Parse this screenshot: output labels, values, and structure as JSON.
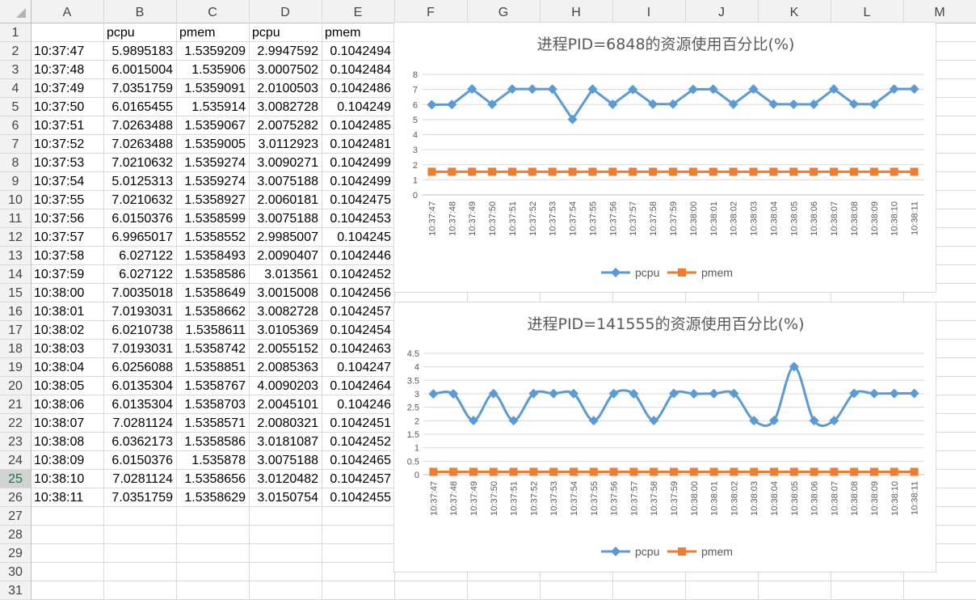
{
  "sheet": {
    "columns": [
      "A",
      "B",
      "C",
      "D",
      "E",
      "F",
      "G",
      "H",
      "I",
      "J",
      "K",
      "L",
      "M"
    ],
    "row_count": 31,
    "selected_row": 25,
    "header": [
      "",
      "pcpu",
      "pmem",
      "pcpu",
      "pmem"
    ],
    "rows": [
      [
        "10:37:47",
        "5.9895183",
        "1.5359209",
        "2.9947592",
        "0.1042494"
      ],
      [
        "10:37:48",
        "6.0015004",
        "1.535906",
        "3.0007502",
        "0.1042484"
      ],
      [
        "10:37:49",
        "7.0351759",
        "1.5359091",
        "2.0100503",
        "0.1042486"
      ],
      [
        "10:37:50",
        "6.0165455",
        "1.535914",
        "3.0082728",
        "0.104249"
      ],
      [
        "10:37:51",
        "7.0263488",
        "1.5359067",
        "2.0075282",
        "0.1042485"
      ],
      [
        "10:37:52",
        "7.0263488",
        "1.5359005",
        "3.0112923",
        "0.1042481"
      ],
      [
        "10:37:53",
        "7.0210632",
        "1.5359274",
        "3.0090271",
        "0.1042499"
      ],
      [
        "10:37:54",
        "5.0125313",
        "1.5359274",
        "3.0075188",
        "0.1042499"
      ],
      [
        "10:37:55",
        "7.0210632",
        "1.5358927",
        "2.0060181",
        "0.1042475"
      ],
      [
        "10:37:56",
        "6.0150376",
        "1.5358599",
        "3.0075188",
        "0.1042453"
      ],
      [
        "10:37:57",
        "6.9965017",
        "1.5358552",
        "2.9985007",
        "0.104245"
      ],
      [
        "10:37:58",
        "6.027122",
        "1.5358493",
        "2.0090407",
        "0.1042446"
      ],
      [
        "10:37:59",
        "6.027122",
        "1.5358586",
        "3.013561",
        "0.1042452"
      ],
      [
        "10:38:00",
        "7.0035018",
        "1.5358649",
        "3.0015008",
        "0.1042456"
      ],
      [
        "10:38:01",
        "7.0193031",
        "1.5358662",
        "3.0082728",
        "0.1042457"
      ],
      [
        "10:38:02",
        "6.0210738",
        "1.5358611",
        "3.0105369",
        "0.1042454"
      ],
      [
        "10:38:03",
        "7.0193031",
        "1.5358742",
        "2.0055152",
        "0.1042463"
      ],
      [
        "10:38:04",
        "6.0256088",
        "1.5358851",
        "2.0085363",
        "0.104247"
      ],
      [
        "10:38:05",
        "6.0135304",
        "1.5358767",
        "4.0090203",
        "0.1042464"
      ],
      [
        "10:38:06",
        "6.0135304",
        "1.5358703",
        "2.0045101",
        "0.104246"
      ],
      [
        "10:38:07",
        "7.0281124",
        "1.5358571",
        "2.0080321",
        "0.1042451"
      ],
      [
        "10:38:08",
        "6.0362173",
        "1.5358586",
        "3.0181087",
        "0.1042452"
      ],
      [
        "10:38:09",
        "6.0150376",
        "1.535878",
        "3.0075188",
        "0.1042465"
      ],
      [
        "10:38:10",
        "7.0281124",
        "1.5358656",
        "3.0120482",
        "0.1042457"
      ],
      [
        "10:38:11",
        "7.0351759",
        "1.5358629",
        "3.0150754",
        "0.1042455"
      ]
    ]
  },
  "colors": {
    "pcpu": "#5b9bd5",
    "pmem": "#ed7d31",
    "title": "#595959",
    "gridline": "#d9d9d9",
    "header_bg": "#f2f2f2",
    "header_selected_bg": "#d2d2d2",
    "header_selected_text": "#217346"
  },
  "chart_data": [
    {
      "type": "line",
      "title": "进程PID=6848的资源使用百分比(%)",
      "x": [
        "10:37:47",
        "10:37:48",
        "10:37:49",
        "10:37:50",
        "10:37:51",
        "10:37:52",
        "10:37:53",
        "10:37:54",
        "10:37:55",
        "10:37:56",
        "10:37:57",
        "10:37:58",
        "10:37:59",
        "10:38:00",
        "10:38:01",
        "10:38:02",
        "10:38:03",
        "10:38:04",
        "10:38:05",
        "10:38:06",
        "10:38:07",
        "10:38:08",
        "10:38:09",
        "10:38:10",
        "10:38:11"
      ],
      "yticks": [
        "0",
        "1",
        "2",
        "3",
        "4",
        "5",
        "6",
        "7",
        "8"
      ],
      "ylim": [
        0,
        8
      ],
      "smooth": false,
      "series": [
        {
          "name": "pcpu",
          "marker": "diamond",
          "values": [
            5.9895183,
            6.0015004,
            7.0351759,
            6.0165455,
            7.0263488,
            7.0263488,
            7.0210632,
            5.0125313,
            7.0210632,
            6.0150376,
            6.9965017,
            6.027122,
            6.027122,
            7.0035018,
            7.0193031,
            6.0210738,
            7.0193031,
            6.0256088,
            6.0135304,
            6.0135304,
            7.0281124,
            6.0362173,
            6.0150376,
            7.0281124,
            7.0351759
          ]
        },
        {
          "name": "pmem",
          "marker": "square",
          "values": [
            1.5359209,
            1.535906,
            1.5359091,
            1.535914,
            1.5359067,
            1.5359005,
            1.5359274,
            1.5359274,
            1.5358927,
            1.5358599,
            1.5358552,
            1.5358493,
            1.5358586,
            1.5358649,
            1.5358662,
            1.5358611,
            1.5358742,
            1.5358851,
            1.5358767,
            1.5358703,
            1.5358571,
            1.5358586,
            1.535878,
            1.5358656,
            1.5358629
          ]
        }
      ],
      "legend": "bottom",
      "grid": true
    },
    {
      "type": "line",
      "title": "进程PID=141555的资源使用百分比(%)",
      "x": [
        "10:37:47",
        "10:37:48",
        "10:37:49",
        "10:37:50",
        "10:37:51",
        "10:37:52",
        "10:37:53",
        "10:37:54",
        "10:37:55",
        "10:37:56",
        "10:37:57",
        "10:37:58",
        "10:37:59",
        "10:38:00",
        "10:38:01",
        "10:38:02",
        "10:38:03",
        "10:38:04",
        "10:38:05",
        "10:38:06",
        "10:38:07",
        "10:38:08",
        "10:38:09",
        "10:38:10",
        "10:38:11"
      ],
      "yticks": [
        "0",
        "0.5",
        "1",
        "1.5",
        "2",
        "2.5",
        "3",
        "3.5",
        "4",
        "4.5"
      ],
      "ylim": [
        0,
        4.5
      ],
      "smooth": true,
      "series": [
        {
          "name": "pcpu",
          "marker": "diamond",
          "values": [
            2.9947592,
            3.0007502,
            2.0100503,
            3.0082728,
            2.0075282,
            3.0112923,
            3.0090271,
            3.0075188,
            2.0060181,
            3.0075188,
            2.9985007,
            2.0090407,
            3.013561,
            3.0015008,
            3.0082728,
            3.0105369,
            2.0055152,
            2.0085363,
            4.0090203,
            2.0045101,
            2.0080321,
            3.0181087,
            3.0075188,
            3.0120482,
            3.0150754
          ]
        },
        {
          "name": "pmem",
          "marker": "square",
          "values": [
            0.1042494,
            0.1042484,
            0.1042486,
            0.104249,
            0.1042485,
            0.1042481,
            0.1042499,
            0.1042499,
            0.1042475,
            0.1042453,
            0.104245,
            0.1042446,
            0.1042452,
            0.1042456,
            0.1042457,
            0.1042454,
            0.1042463,
            0.104247,
            0.1042464,
            0.104246,
            0.1042451,
            0.1042452,
            0.1042465,
            0.1042457,
            0.1042455
          ]
        }
      ],
      "legend": "bottom",
      "grid": true
    }
  ]
}
